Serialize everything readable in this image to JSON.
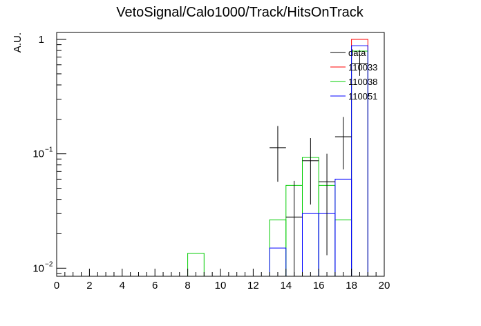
{
  "chart_data": {
    "type": "histogram",
    "title": "VetoSignal/Calo1000/Track/HitsOnTrack",
    "xlabel": "",
    "ylabel": "A.U.",
    "xlim": [
      0,
      20
    ],
    "ylim": [
      0.0085,
      1.15
    ],
    "yscale": "log",
    "bin_width": 1,
    "x_ticks": [
      0,
      2,
      4,
      6,
      8,
      10,
      12,
      14,
      16,
      18,
      20
    ],
    "y_ticks": [
      {
        "value": 0.01,
        "base": "10",
        "exp": "−2"
      },
      {
        "value": 0.1,
        "base": "10",
        "exp": "−1"
      },
      {
        "value": 1,
        "base": "1",
        "exp": ""
      }
    ],
    "legend": {
      "placement": "top-right",
      "entries": [
        {
          "name": "data",
          "color": "#000000"
        },
        {
          "name": "110033",
          "color": "#ff0000"
        },
        {
          "name": "110038",
          "color": "#00cc00"
        },
        {
          "name": "110051",
          "color": "#0000ff"
        }
      ]
    },
    "data_points": [
      {
        "x": 13.5,
        "y": 0.113,
        "err_low": 0.057,
        "err_high": 0.175
      },
      {
        "x": 14.5,
        "y": 0.028,
        "err_low": 0.0085,
        "err_high": 0.058
      },
      {
        "x": 15.5,
        "y": 0.087,
        "err_low": 0.036,
        "err_high": 0.137
      },
      {
        "x": 16.5,
        "y": 0.057,
        "err_low": 0.013,
        "err_high": 0.1
      },
      {
        "x": 17.5,
        "y": 0.141,
        "err_low": 0.073,
        "err_high": 0.21
      },
      {
        "x": 18.5,
        "y": 0.617,
        "err_low": 0.48,
        "err_high": 0.75
      }
    ],
    "series": [
      {
        "name": "110033",
        "color": "#ff0000",
        "bins": [
          {
            "x0": 18,
            "x1": 19,
            "y": 1.0
          }
        ]
      },
      {
        "name": "110038",
        "color": "#00cc00",
        "bins": [
          {
            "x0": 8,
            "x1": 9,
            "y": 0.0135
          },
          {
            "x0": 13,
            "x1": 14,
            "y": 0.0265
          },
          {
            "x0": 14,
            "x1": 15,
            "y": 0.053
          },
          {
            "x0": 15,
            "x1": 16,
            "y": 0.093
          },
          {
            "x0": 16,
            "x1": 17,
            "y": 0.053
          },
          {
            "x0": 17,
            "x1": 18,
            "y": 0.0265
          },
          {
            "x0": 18,
            "x1": 19,
            "y": 0.79
          }
        ]
      },
      {
        "name": "110051",
        "color": "#0000ff",
        "bins": [
          {
            "x0": 13,
            "x1": 14,
            "y": 0.015
          },
          {
            "x0": 15,
            "x1": 16,
            "y": 0.03
          },
          {
            "x0": 16,
            "x1": 17,
            "y": 0.03
          },
          {
            "x0": 17,
            "x1": 18,
            "y": 0.06
          },
          {
            "x0": 18,
            "x1": 19,
            "y": 0.88
          }
        ]
      }
    ]
  }
}
